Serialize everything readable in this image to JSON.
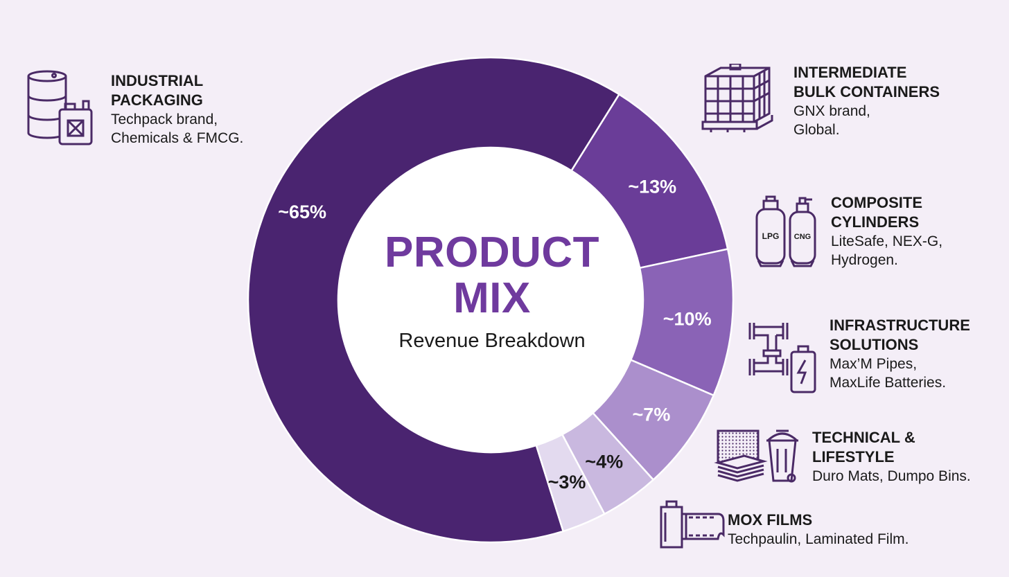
{
  "chart_data": {
    "type": "pie",
    "variant": "donut",
    "title": "PRODUCT\nMIX",
    "title_lines": [
      "PRODUCT",
      "MIX"
    ],
    "subtitle": "Revenue Breakdown",
    "categories": [
      "Industrial Packaging",
      "Intermediate Bulk Containers",
      "Composite Cylinders",
      "Infrastructure Solutions",
      "Technical & Lifestyle",
      "Mox Films"
    ],
    "values": [
      65,
      13,
      10,
      7,
      4,
      3
    ],
    "labels": [
      "~65%",
      "~13%",
      "~10%",
      "~7%",
      "~4%",
      "~3%"
    ],
    "colors": [
      "#4a2470",
      "#6a3d98",
      "#8a63b6",
      "#ab8fcc",
      "#c9b8df",
      "#e3daef"
    ],
    "label_colors": [
      "#ffffff",
      "#ffffff",
      "#ffffff",
      "#ffffff",
      "#1a1a1a",
      "#1a1a1a"
    ]
  },
  "segments": [
    {
      "title": "INDUSTRIAL\nPACKAGING",
      "desc": "Techpack brand,\nChemicals & FMCG.",
      "icon": "drum-and-jerrycan-icon"
    },
    {
      "title": "INTERMEDIATE\nBULK CONTAINERS",
      "desc": "GNX brand,\nGlobal.",
      "icon": "ibc-tote-icon"
    },
    {
      "title": "COMPOSITE\nCYLINDERS",
      "desc": "LiteSafe, NEX-G,\nHydrogen.",
      "icon": "gas-cylinders-icon",
      "icon_text": [
        "LPG",
        "CNG"
      ]
    },
    {
      "title": "INFRASTRUCTURE\nSOLUTIONS",
      "desc": "Max’M Pipes,\nMaxLife Batteries.",
      "icon": "pipes-and-battery-icon"
    },
    {
      "title": "TECHNICAL &\nLIFESTYLE",
      "desc": "Duro Mats, Dumpo Bins.",
      "icon": "mats-and-bin-icon"
    },
    {
      "title": "MOX FILMS",
      "desc": "Techpaulin, Laminated Film.",
      "icon": "film-roll-icon"
    }
  ],
  "palette": {
    "background": "#f4eef7",
    "accent": "#6f3a9e",
    "icon_stroke": "#4a2a66"
  }
}
